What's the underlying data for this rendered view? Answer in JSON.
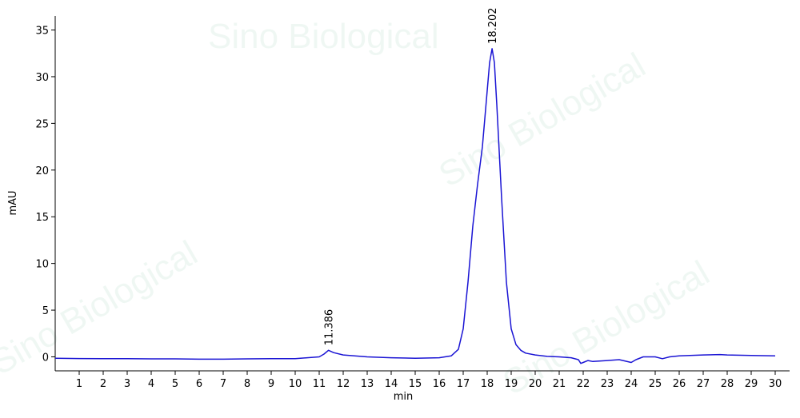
{
  "chart_data": {
    "type": "line",
    "x_label": "min",
    "y_label": "mAU",
    "watermark": "Sino Biological",
    "x": [
      0,
      1,
      2,
      3,
      4,
      5,
      6,
      7,
      8,
      9,
      10,
      10.5,
      11,
      11.2,
      11.386,
      11.6,
      12,
      13,
      14,
      15,
      16,
      16.5,
      16.8,
      17,
      17.2,
      17.4,
      17.6,
      17.8,
      18,
      18.1,
      18.202,
      18.3,
      18.4,
      18.6,
      18.8,
      19,
      19.2,
      19.4,
      19.6,
      20,
      20.5,
      21,
      21.5,
      21.8,
      21.9,
      22,
      22.2,
      22.4,
      23,
      23.5,
      24,
      24.2,
      24.5,
      25,
      25.3,
      25.6,
      26,
      27,
      27.7,
      28,
      29,
      30
    ],
    "series": [
      {
        "name": "mAU",
        "color": "#1a14d4",
        "values": [
          -0.15,
          -0.18,
          -0.2,
          -0.2,
          -0.22,
          -0.22,
          -0.25,
          -0.25,
          -0.22,
          -0.2,
          -0.2,
          -0.1,
          0,
          0.3,
          0.7,
          0.45,
          0.2,
          0,
          -0.1,
          -0.15,
          -0.1,
          0.1,
          0.8,
          3,
          8,
          14,
          18.5,
          22.5,
          28.5,
          31.5,
          33,
          31.5,
          27,
          17,
          8,
          3,
          1.3,
          0.7,
          0.4,
          0.2,
          0.05,
          0,
          -0.1,
          -0.3,
          -0.7,
          -0.6,
          -0.4,
          -0.5,
          -0.4,
          -0.3,
          -0.6,
          -0.3,
          0,
          0,
          -0.2,
          0,
          0.1,
          0.2,
          0.25,
          0.2,
          0.15,
          0.1
        ]
      }
    ],
    "peaks": [
      11.386,
      18.202
    ],
    "xlim": [
      0,
      30.6
    ],
    "ylim": [
      -1.5,
      36.5
    ],
    "xticks": [
      1,
      2,
      3,
      4,
      5,
      6,
      7,
      8,
      9,
      10,
      11,
      12,
      13,
      14,
      15,
      16,
      17,
      18,
      19,
      20,
      21,
      22,
      23,
      24,
      25,
      26,
      27,
      28,
      29,
      30
    ],
    "yticks": [
      0,
      5,
      10,
      15,
      20,
      25,
      30,
      35
    ]
  }
}
